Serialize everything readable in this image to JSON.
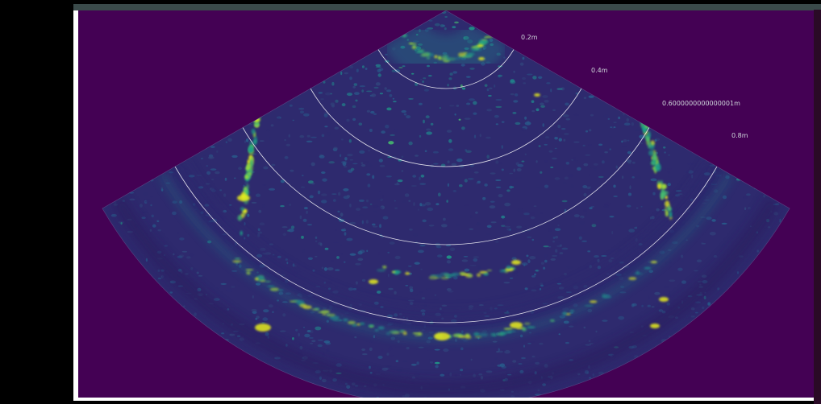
{
  "sonar": {
    "range_labels": [
      "0.2m",
      "0.4m",
      "0.6000000000000001m",
      "0.8m"
    ],
    "colors": {
      "background": "#440154",
      "ring": "#ffffff",
      "label": "#cfd8dc"
    },
    "colormap": [
      "#2d2a6f",
      "#31467d",
      "#285f8e",
      "#21828b",
      "#1fa088",
      "#46c06f",
      "#9dd93b",
      "#e7ec1f"
    ]
  }
}
